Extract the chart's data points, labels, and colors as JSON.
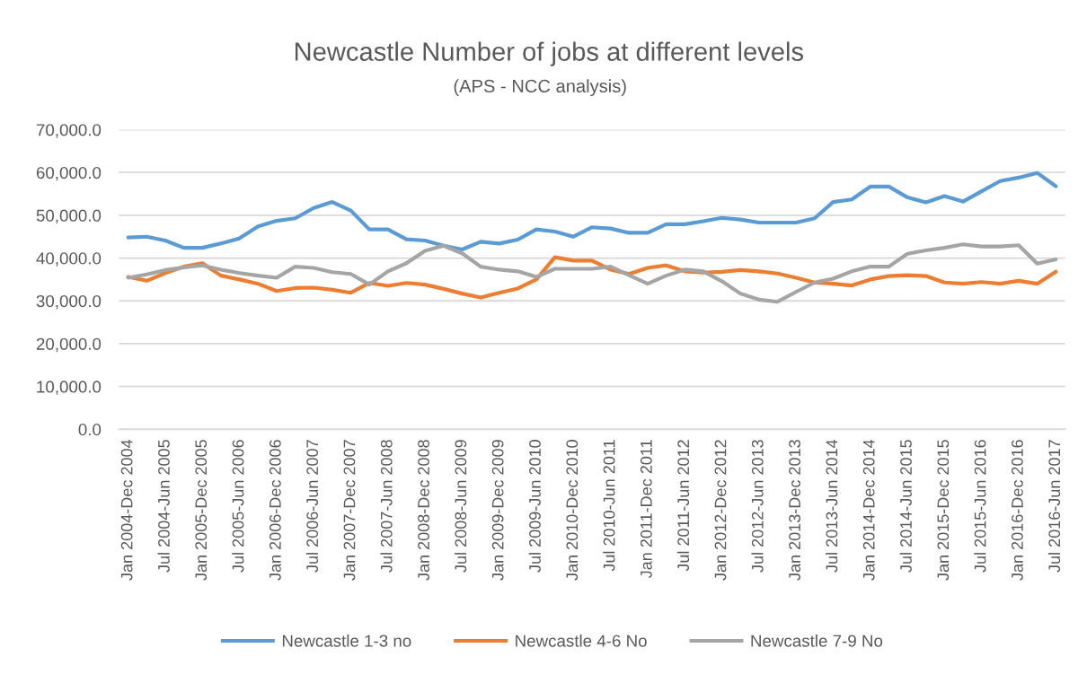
{
  "chart_data": {
    "type": "line",
    "title": "Newcastle Number of jobs at different levels",
    "subtitle": "(APS - NCC analysis)",
    "categories": [
      "Jan 2004-Dec 2004",
      null,
      "Jul 2004-Jun 2005",
      null,
      "Jan 2005-Dec 2005",
      null,
      "Jul 2005-Jun 2006",
      null,
      "Jan 2006-Dec 2006",
      null,
      "Jul 2006-Jun 2007",
      null,
      "Jan 2007-Dec 2007",
      null,
      "Jul 2007-Jun 2008",
      null,
      "Jan 2008-Dec 2008",
      null,
      "Jul 2008-Jun 2009",
      null,
      "Jan 2009-Dec 2009",
      null,
      "Jul 2009-Jun 2010",
      null,
      "Jan 2010-Dec 2010",
      null,
      "Jul 2010-Jun 2011",
      null,
      "Jan 2011-Dec 2011",
      null,
      "Jul 2011-Jun 2012",
      null,
      "Jan 2012-Dec 2012",
      null,
      "Jul 2012-Jun 2013",
      null,
      "Jan 2013-Dec 2013",
      null,
      "Jul 2013-Jun 2014",
      null,
      "Jan 2014-Dec 2014",
      null,
      "Jul 2014-Jun 2015",
      null,
      "Jan 2015-Dec 2015",
      null,
      "Jul 2015-Jun 2016",
      null,
      "Jan 2016-Dec 2016",
      null,
      "Jul 2016-Jun 2017"
    ],
    "series": [
      {
        "name": "Newcastle 1-3 no",
        "color": "#5b9bd5",
        "values": [
          44800,
          45000,
          44100,
          42400,
          42400,
          43400,
          44600,
          47400,
          48700,
          49300,
          51700,
          53100,
          51100,
          46700,
          46700,
          44400,
          44100,
          42900,
          42000,
          43800,
          43400,
          44300,
          46700,
          46200,
          45000,
          47200,
          46900,
          45900,
          45900,
          47900,
          47900,
          48600,
          49400,
          49000,
          48300,
          48300,
          48300,
          49300,
          53100,
          53700,
          56700,
          56700,
          54200,
          53000,
          54500,
          53200,
          55600,
          58000,
          58800,
          59900,
          56800
        ]
      },
      {
        "name": "Newcastle 4-6 No",
        "color": "#ed7d31",
        "values": [
          35600,
          34700,
          36500,
          38000,
          38800,
          35900,
          35000,
          34000,
          32300,
          33000,
          33100,
          32600,
          31900,
          34200,
          33500,
          34200,
          33800,
          32800,
          31700,
          30800,
          31900,
          32900,
          35000,
          40200,
          39400,
          39400,
          37300,
          36300,
          37700,
          38300,
          36900,
          36600,
          36800,
          37200,
          36900,
          36400,
          35400,
          34300,
          34000,
          33600,
          35000,
          35800,
          36000,
          35800,
          34300,
          34000,
          34400,
          34000,
          34700,
          34000,
          36800
        ]
      },
      {
        "name": "Newcastle 7-9 No",
        "color": "#a5a5a5",
        "values": [
          35400,
          36200,
          37200,
          37800,
          38300,
          37300,
          36500,
          35900,
          35400,
          38000,
          37700,
          36700,
          36300,
          33800,
          36900,
          38800,
          41700,
          42900,
          41100,
          38000,
          37300,
          36900,
          35600,
          37500,
          37500,
          37500,
          38000,
          36000,
          34000,
          35900,
          37300,
          36900,
          34600,
          31700,
          30300,
          29800,
          32100,
          34300,
          35200,
          36900,
          38000,
          38000,
          41000,
          41800,
          42400,
          43200,
          42700,
          42700,
          43000,
          38700,
          39700
        ]
      }
    ],
    "ylim": [
      0,
      70000
    ],
    "yticks": [
      {
        "value": 0,
        "label": "0.0"
      },
      {
        "value": 10000,
        "label": "10,000.0"
      },
      {
        "value": 20000,
        "label": "20,000.0"
      },
      {
        "value": 30000,
        "label": "30,000.0"
      },
      {
        "value": 40000,
        "label": "40,000.0"
      },
      {
        "value": 50000,
        "label": "50,000.0"
      },
      {
        "value": 60000,
        "label": "60,000.0"
      },
      {
        "value": 70000,
        "label": "70,000.0"
      }
    ],
    "grid": "y",
    "legend": "bottom"
  }
}
